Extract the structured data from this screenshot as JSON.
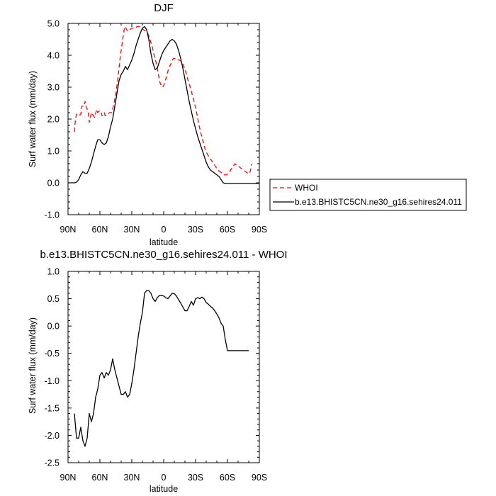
{
  "chart_data": [
    {
      "type": "line",
      "title": "DJF",
      "xlabel": "latitude",
      "ylabel": "Surf water flux (mm/day)",
      "xlim": [
        90,
        -90
      ],
      "ylim": [
        -1.0,
        5.0
      ],
      "xticks": [
        90,
        60,
        30,
        0,
        -30,
        -60,
        -90
      ],
      "xtick_labels": [
        "90N",
        "60N",
        "30N",
        "0",
        "30S",
        "60S",
        "90S"
      ],
      "yticks": [
        -1.0,
        0.0,
        1.0,
        2.0,
        3.0,
        4.0,
        5.0
      ],
      "ytick_labels": [
        "-1.0",
        "0.0",
        "1.0",
        "2.0",
        "3.0",
        "4.0",
        "5.0"
      ],
      "grid": false,
      "legend_placement": "outside-right",
      "series": [
        {
          "name": "WHOI",
          "color": "#ff0000",
          "dash": "dashed",
          "x": [
            84,
            83,
            82,
            80,
            78,
            77,
            75,
            74,
            73,
            71,
            70,
            69,
            68,
            67,
            65,
            63,
            62,
            61,
            59,
            58,
            56,
            55,
            53,
            51,
            49,
            47,
            45,
            43,
            41,
            39,
            37,
            36,
            35,
            33,
            32,
            30,
            28,
            27,
            25,
            23,
            21,
            19,
            17,
            15,
            13,
            11,
            9,
            7,
            5,
            4,
            3,
            2,
            1,
            0,
            -1,
            -2,
            -3,
            -5,
            -7,
            -9,
            -11,
            -13,
            -15,
            -17,
            -19,
            -21,
            -23,
            -25,
            -27,
            -29,
            -31,
            -33,
            -35,
            -37,
            -39,
            -41,
            -43,
            -45,
            -47,
            -49,
            -51,
            -53,
            -55,
            -57,
            -59,
            -61,
            -63,
            -65,
            -67,
            -69,
            -71,
            -73,
            -75,
            -77,
            -79,
            -81,
            -83
          ],
          "y": [
            1.6,
            2.0,
            2.15,
            2.1,
            2.15,
            2.4,
            2.4,
            2.55,
            2.4,
            2.2,
            1.9,
            2.05,
            2.2,
            2.15,
            2.05,
            2.3,
            2.2,
            2.25,
            2.25,
            2.1,
            2.2,
            2.1,
            2.15,
            2.2,
            2.2,
            2.45,
            2.8,
            3.3,
            3.9,
            4.4,
            4.85,
            4.9,
            4.8,
            4.75,
            4.8,
            4.85,
            4.85,
            4.85,
            4.9,
            4.9,
            4.85,
            4.8,
            4.75,
            4.7,
            4.5,
            4.3,
            4.0,
            3.75,
            3.4,
            3.2,
            3.1,
            3.05,
            3.0,
            3.05,
            3.15,
            3.25,
            3.4,
            3.6,
            3.75,
            3.9,
            3.9,
            3.85,
            3.85,
            3.8,
            3.65,
            3.45,
            3.2,
            3.0,
            2.75,
            2.5,
            2.2,
            1.85,
            1.55,
            1.3,
            1.05,
            0.9,
            0.8,
            0.7,
            0.6,
            0.5,
            0.4,
            0.35,
            0.3,
            0.25,
            0.25,
            0.3,
            0.4,
            0.5,
            0.6,
            0.55,
            0.5,
            0.45,
            0.4,
            0.35,
            0.3,
            0.3,
            0.6
          ]
        },
        {
          "name": "b.e13.BHISTC5CN.ne30_g16.sehires24.011",
          "color": "#000000",
          "dash": "solid",
          "x": [
            90,
            88,
            86,
            84,
            82,
            80,
            78,
            76,
            74,
            72,
            70,
            68,
            66,
            64,
            62,
            60,
            58,
            56,
            54,
            52,
            50,
            48,
            46,
            44,
            42,
            40,
            38,
            36,
            34,
            32,
            30,
            28,
            26,
            24,
            22,
            20,
            18,
            16,
            14,
            12,
            10,
            8,
            6,
            4,
            2,
            0,
            -2,
            -4,
            -6,
            -8,
            -10,
            -12,
            -14,
            -16,
            -18,
            -20,
            -22,
            -24,
            -26,
            -28,
            -30,
            -32,
            -34,
            -36,
            -38,
            -40,
            -42,
            -44,
            -46,
            -48,
            -50,
            -52,
            -54,
            -56,
            -58,
            -60,
            -62,
            -64,
            -66,
            -68,
            -70,
            -72,
            -74,
            -76,
            -78,
            -80,
            -82,
            -84,
            -86,
            -88,
            -90
          ],
          "y": [
            0.0,
            0.0,
            0.0,
            0.0,
            0.02,
            0.1,
            0.25,
            0.35,
            0.3,
            0.3,
            0.45,
            0.65,
            0.9,
            1.15,
            1.35,
            1.35,
            1.25,
            1.2,
            1.25,
            1.45,
            1.75,
            2.0,
            2.4,
            2.8,
            3.2,
            3.4,
            3.5,
            3.65,
            3.55,
            3.7,
            3.85,
            4.05,
            4.3,
            4.5,
            4.7,
            4.85,
            4.9,
            4.8,
            4.5,
            4.05,
            3.75,
            3.55,
            3.6,
            3.8,
            4.0,
            4.15,
            4.25,
            4.35,
            4.45,
            4.5,
            4.45,
            4.35,
            4.15,
            3.9,
            3.6,
            3.25,
            2.9,
            2.55,
            2.25,
            1.95,
            1.7,
            1.45,
            1.25,
            1.05,
            0.85,
            0.65,
            0.5,
            0.4,
            0.35,
            0.3,
            0.25,
            0.2,
            0.1,
            0.0,
            -0.02,
            -0.02,
            -0.02,
            -0.02,
            -0.02,
            -0.02,
            -0.02,
            -0.02,
            -0.02,
            -0.02,
            -0.02,
            -0.02,
            -0.02,
            -0.02,
            -0.02,
            -0.02,
            -0.02
          ]
        }
      ]
    },
    {
      "type": "line",
      "title": "b.e13.BHISTC5CN.ne30_g16.sehires24.011 - WHOI",
      "xlabel": "latitude",
      "ylabel": "Surf water flux (mm/day)",
      "xlim": [
        90,
        -90
      ],
      "ylim": [
        -2.5,
        1.0
      ],
      "xticks": [
        90,
        60,
        30,
        0,
        -30,
        -60,
        -90
      ],
      "xtick_labels": [
        "90N",
        "60N",
        "30N",
        "0",
        "30S",
        "60S",
        "90S"
      ],
      "yticks": [
        -2.5,
        -2.0,
        -1.5,
        -1.0,
        -0.5,
        0.0,
        0.5,
        1.0
      ],
      "ytick_labels": [
        "-2.5",
        "-2.0",
        "-1.5",
        "-1.0",
        "-0.5",
        "0.0",
        "0.5",
        "1.0"
      ],
      "grid": false,
      "series": [
        {
          "color": "#000000",
          "dash": "solid",
          "x": [
            84,
            82,
            80,
            78,
            76,
            74,
            72,
            70,
            68,
            66,
            64,
            62,
            60,
            58,
            56,
            54,
            52,
            50,
            48,
            46,
            44,
            42,
            40,
            38,
            36,
            34,
            32,
            30,
            28,
            26,
            24,
            22,
            20,
            18,
            16,
            14,
            12,
            10,
            8,
            6,
            4,
            2,
            0,
            -2,
            -4,
            -6,
            -8,
            -10,
            -12,
            -14,
            -16,
            -18,
            -20,
            -22,
            -24,
            -26,
            -28,
            -30,
            -32,
            -34,
            -36,
            -38,
            -40,
            -42,
            -44,
            -46,
            -48,
            -50,
            -52,
            -54,
            -56,
            -58,
            -60,
            -62,
            -64,
            -66,
            -68,
            -70,
            -72,
            -74,
            -76,
            -78,
            -80
          ],
          "y": [
            -1.6,
            -2.05,
            -2.05,
            -1.85,
            -2.1,
            -2.2,
            -2.05,
            -1.6,
            -1.75,
            -1.6,
            -1.3,
            -1.15,
            -0.9,
            -0.85,
            -0.95,
            -0.85,
            -0.9,
            -0.8,
            -0.6,
            -0.8,
            -0.95,
            -1.1,
            -1.25,
            -1.25,
            -1.2,
            -1.3,
            -1.25,
            -1.05,
            -0.8,
            -0.5,
            -0.2,
            0.05,
            0.25,
            0.6,
            0.65,
            0.65,
            0.6,
            0.5,
            0.45,
            0.52,
            0.56,
            0.56,
            0.55,
            0.52,
            0.5,
            0.55,
            0.6,
            0.59,
            0.55,
            0.48,
            0.42,
            0.35,
            0.28,
            0.28,
            0.36,
            0.45,
            0.38,
            0.5,
            0.52,
            0.5,
            0.53,
            0.5,
            0.43,
            0.4,
            0.36,
            0.33,
            0.28,
            0.22,
            0.15,
            0.05,
            0.0,
            -0.25,
            -0.45,
            -0.45,
            -0.45,
            -0.45,
            -0.45,
            -0.45,
            -0.45,
            -0.45,
            -0.45,
            -0.45,
            -0.45
          ]
        }
      ]
    }
  ]
}
